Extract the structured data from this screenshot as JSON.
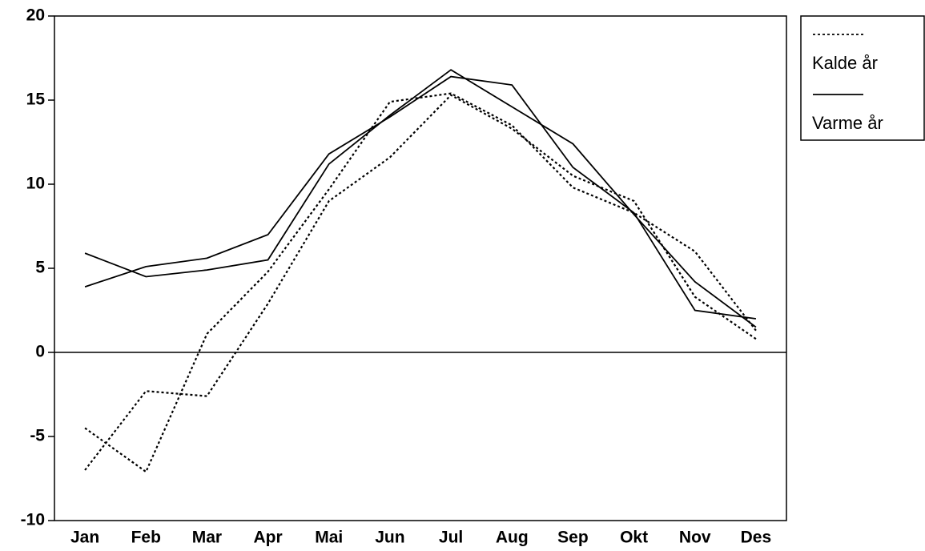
{
  "chart_data": {
    "type": "line",
    "categories": [
      "Jan",
      "Feb",
      "Mar",
      "Apr",
      "Mai",
      "Jun",
      "Jul",
      "Aug",
      "Sep",
      "Okt",
      "Nov",
      "Des"
    ],
    "series": [
      {
        "style": "dotted",
        "color": "#000000",
        "values": [
          -4.5,
          -7.1,
          1.1,
          4.8,
          9.7,
          14.9,
          15.4,
          13.5,
          9.8,
          8.3,
          6.0,
          1.3
        ]
      },
      {
        "style": "dotted",
        "color": "#000000",
        "values": [
          -7.0,
          -2.3,
          -2.6,
          2.9,
          9.0,
          11.6,
          15.3,
          13.3,
          10.5,
          9.0,
          3.3,
          0.8
        ]
      },
      {
        "style": "solid",
        "color": "#000000",
        "values": [
          5.9,
          4.5,
          4.9,
          5.5,
          11.2,
          14.1,
          16.8,
          14.6,
          12.4,
          8.2,
          4.2,
          1.5
        ]
      },
      {
        "style": "solid",
        "color": "#000000",
        "values": [
          3.9,
          5.1,
          5.6,
          7.0,
          11.8,
          14.0,
          16.4,
          15.9,
          11.0,
          8.3,
          2.5,
          2.0
        ]
      }
    ],
    "legend": [
      {
        "label": "Kalde år",
        "style": "dotted"
      },
      {
        "label": "Varme år",
        "style": "solid"
      }
    ],
    "ylim": [
      -10,
      20
    ],
    "yticks": [
      -10,
      -5,
      0,
      5,
      10,
      15,
      20
    ],
    "zero_line": true
  }
}
